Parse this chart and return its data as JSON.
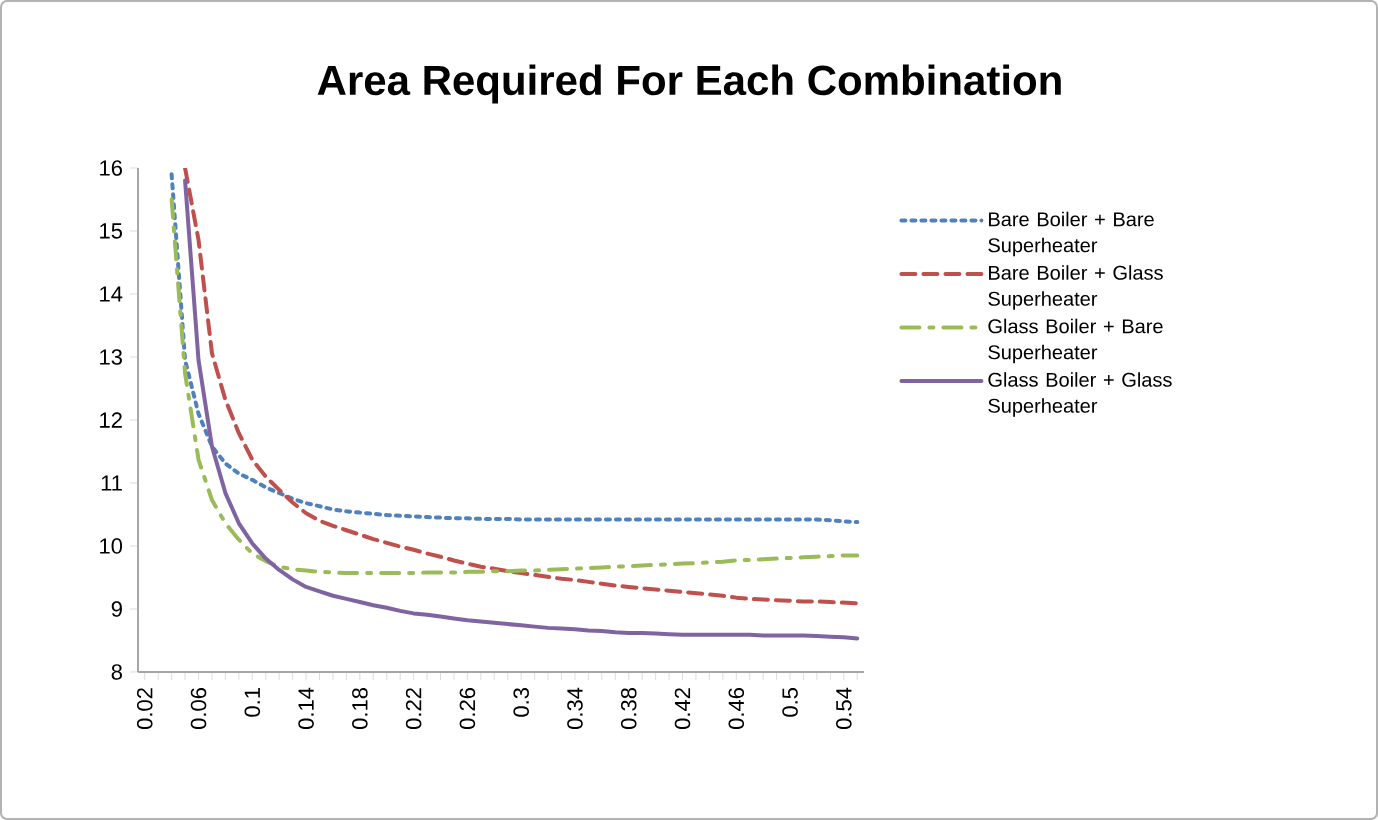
{
  "chart_data": {
    "type": "line",
    "title": "Area Required For Each Combination",
    "categories": [
      "0.02",
      null,
      null,
      null,
      "0.06",
      null,
      null,
      null,
      "0.1",
      null,
      null,
      null,
      "0.14",
      null,
      null,
      null,
      "0.18",
      null,
      null,
      null,
      "0.22",
      null,
      null,
      null,
      "0.26",
      null,
      null,
      null,
      "0.3",
      null,
      null,
      null,
      "0.34",
      null,
      null,
      null,
      "0.38",
      null,
      null,
      null,
      "0.42",
      null,
      null,
      null,
      "0.46",
      null,
      null,
      null,
      "0.5",
      null,
      null,
      null,
      "0.54",
      null
    ],
    "ylim": [
      8,
      16
    ],
    "yticks": [
      8,
      9,
      10,
      11,
      12,
      13,
      14,
      15,
      16
    ],
    "grid": false,
    "legend": "right",
    "marker": "none",
    "series": [
      {
        "name": "Bare Boiler + Bare Superheater",
        "color": "#4f81bd",
        "line_style": "dotted",
        "values": [
          null,
          null,
          15.9,
          12.95,
          12.1,
          11.58,
          11.31,
          11.15,
          11.05,
          10.93,
          10.84,
          10.75,
          10.68,
          10.63,
          10.58,
          10.55,
          10.53,
          10.51,
          10.49,
          10.48,
          10.47,
          10.46,
          10.45,
          10.44,
          10.44,
          10.43,
          10.43,
          10.43,
          10.42,
          10.42,
          10.42,
          10.42,
          10.42,
          10.42,
          10.42,
          10.42,
          10.42,
          10.42,
          10.42,
          10.42,
          10.42,
          10.42,
          10.42,
          10.42,
          10.42,
          10.42,
          10.42,
          10.42,
          10.42,
          10.42,
          10.42,
          10.41,
          10.39,
          10.38
        ]
      },
      {
        "name": "Bare Boiler + Glass Superheater",
        "color": "#c0504d",
        "line_style": "dashed",
        "values": [
          null,
          null,
          null,
          16,
          14.86,
          13.06,
          12.32,
          11.79,
          11.37,
          11.1,
          10.89,
          10.69,
          10.52,
          10.4,
          10.32,
          10.25,
          10.18,
          10.11,
          10.05,
          9.99,
          9.94,
          9.88,
          9.83,
          9.77,
          9.72,
          9.67,
          9.64,
          9.6,
          9.57,
          9.54,
          9.51,
          9.48,
          9.46,
          9.43,
          9.4,
          9.37,
          9.35,
          9.33,
          9.31,
          9.29,
          9.27,
          9.25,
          9.23,
          9.21,
          9.18,
          9.16,
          9.15,
          9.14,
          9.13,
          9.12,
          9.12,
          9.11,
          9.1,
          9.09
        ]
      },
      {
        "name": "Glass Boiler + Bare Superheater",
        "color": "#9bbb59",
        "line_style": "dashdot",
        "values": [
          null,
          null,
          15.5,
          12.74,
          11.37,
          10.73,
          10.36,
          10.1,
          9.88,
          9.76,
          9.67,
          9.63,
          9.61,
          9.59,
          9.58,
          9.57,
          9.57,
          9.57,
          9.57,
          9.57,
          9.57,
          9.58,
          9.58,
          9.58,
          9.59,
          9.59,
          9.6,
          9.6,
          9.61,
          9.61,
          9.62,
          9.63,
          9.64,
          9.65,
          9.66,
          9.67,
          9.68,
          9.69,
          9.7,
          9.71,
          9.72,
          9.73,
          9.74,
          9.75,
          9.77,
          9.78,
          9.79,
          9.8,
          9.81,
          9.82,
          9.83,
          9.84,
          9.85,
          9.85
        ]
      },
      {
        "name": "Glass Boiler + Glass Superheater",
        "color": "#8064a2",
        "line_style": "solid",
        "values": [
          null,
          null,
          null,
          15.8,
          12.95,
          11.58,
          10.84,
          10.36,
          10.04,
          9.8,
          9.62,
          9.47,
          9.35,
          9.28,
          9.21,
          9.16,
          9.11,
          9.06,
          9.02,
          8.97,
          8.93,
          8.91,
          8.88,
          8.85,
          8.82,
          8.8,
          8.78,
          8.76,
          8.74,
          8.72,
          8.7,
          8.69,
          8.68,
          8.66,
          8.65,
          8.63,
          8.62,
          8.62,
          8.61,
          8.6,
          8.59,
          8.59,
          8.59,
          8.59,
          8.59,
          8.59,
          8.58,
          8.58,
          8.58,
          8.58,
          8.57,
          8.56,
          8.55,
          8.53
        ]
      }
    ]
  }
}
